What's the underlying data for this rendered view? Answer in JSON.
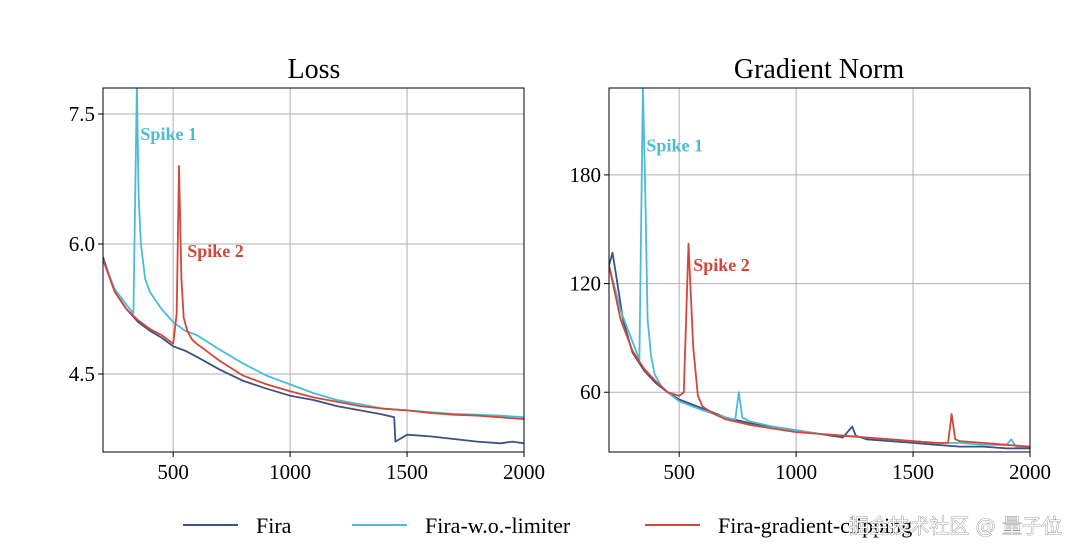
{
  "colors": {
    "fira": "#3b5283",
    "limiter": "#4bbcd6",
    "clip": "#d2473b",
    "grid": "#b0b0b0"
  },
  "legend": [
    {
      "label": "Fira",
      "key": "fira"
    },
    {
      "label": "Fira-w.o.-limiter",
      "key": "limiter"
    },
    {
      "label": "Fira-gradient-clipping",
      "key": "clip"
    }
  ],
  "watermark": "掘金技术社区 @ 量子位",
  "chart_data": [
    {
      "type": "line",
      "title": "Loss",
      "xlabel": "",
      "ylabel": "",
      "xlim": [
        200,
        2000
      ],
      "ylim": [
        3.6,
        7.8
      ],
      "xticks": [
        500,
        1000,
        1500,
        2000
      ],
      "yticks": [
        4.5,
        6.0,
        7.5
      ],
      "ytick_labels": [
        "4.5",
        "6.0",
        "7.5"
      ],
      "grid": true,
      "annotations": [
        {
          "text": "Spike 1",
          "x": 360,
          "y": 7.2,
          "series": "limiter"
        },
        {
          "text": "Spike 2",
          "x": 560,
          "y": 5.85,
          "series": "clip"
        }
      ],
      "series": [
        {
          "name": "Fira",
          "key": "fira",
          "x": [
            200,
            250,
            300,
            350,
            400,
            450,
            500,
            550,
            600,
            700,
            800,
            900,
            1000,
            1100,
            1200,
            1300,
            1400,
            1445,
            1450,
            1500,
            1600,
            1700,
            1800,
            1900,
            1950,
            2000
          ],
          "y": [
            5.85,
            5.45,
            5.25,
            5.1,
            5.0,
            4.92,
            4.82,
            4.77,
            4.7,
            4.55,
            4.42,
            4.33,
            4.25,
            4.2,
            4.13,
            4.08,
            4.03,
            4.0,
            3.72,
            3.8,
            3.78,
            3.75,
            3.72,
            3.7,
            3.72,
            3.7
          ]
        },
        {
          "name": "Fira-w.o.-limiter",
          "key": "limiter",
          "x": [
            200,
            250,
            300,
            330,
            345,
            352,
            362,
            380,
            400,
            450,
            500,
            550,
            600,
            700,
            800,
            900,
            1000,
            1100,
            1200,
            1300,
            1400,
            1500,
            1600,
            1700,
            1800,
            1900,
            2000
          ],
          "y": [
            5.82,
            5.48,
            5.3,
            5.2,
            7.85,
            6.55,
            6.0,
            5.6,
            5.45,
            5.25,
            5.1,
            5.0,
            4.95,
            4.78,
            4.62,
            4.48,
            4.38,
            4.28,
            4.2,
            4.15,
            4.1,
            4.08,
            4.06,
            4.04,
            4.03,
            4.02,
            4.0
          ]
        },
        {
          "name": "Fira-gradient-clipping",
          "key": "clip",
          "x": [
            200,
            250,
            300,
            350,
            400,
            450,
            500,
            515,
            525,
            535,
            545,
            560,
            580,
            600,
            650,
            700,
            800,
            900,
            1000,
            1100,
            1200,
            1300,
            1400,
            1500,
            1600,
            1700,
            1800,
            1900,
            2000
          ],
          "y": [
            5.82,
            5.45,
            5.25,
            5.12,
            5.02,
            4.95,
            4.85,
            5.2,
            6.9,
            5.6,
            5.15,
            5.0,
            4.9,
            4.85,
            4.75,
            4.65,
            4.48,
            4.38,
            4.3,
            4.23,
            4.18,
            4.13,
            4.1,
            4.08,
            4.05,
            4.03,
            4.02,
            4.0,
            3.98
          ]
        }
      ]
    },
    {
      "type": "line",
      "title": "Gradient Norm",
      "xlabel": "",
      "ylabel": "",
      "xlim": [
        200,
        2000
      ],
      "ylim": [
        27,
        228
      ],
      "xticks": [
        500,
        1000,
        1500,
        2000
      ],
      "yticks": [
        60,
        120,
        180
      ],
      "ytick_labels": [
        "60",
        "120",
        "180"
      ],
      "grid": true,
      "annotations": [
        {
          "text": "Spike 1",
          "x": 360,
          "y": 193,
          "series": "limiter"
        },
        {
          "text": "Spike 2",
          "x": 560,
          "y": 127,
          "series": "clip"
        }
      ],
      "series": [
        {
          "name": "Fira",
          "key": "fira",
          "x": [
            200,
            215,
            230,
            260,
            300,
            350,
            400,
            450,
            500,
            600,
            700,
            800,
            900,
            1000,
            1100,
            1200,
            1240,
            1255,
            1300,
            1400,
            1500,
            1600,
            1700,
            1800,
            1900,
            2000
          ],
          "y": [
            130,
            137,
            125,
            100,
            82,
            72,
            65,
            60,
            56,
            51,
            46,
            43,
            41,
            39,
            37,
            35,
            41,
            36,
            34,
            33,
            32,
            31,
            30,
            30,
            29,
            29
          ]
        },
        {
          "name": "Fira-w.o.-limiter",
          "key": "limiter",
          "x": [
            200,
            250,
            300,
            330,
            345,
            355,
            365,
            380,
            395,
            420,
            450,
            500,
            600,
            700,
            740,
            755,
            770,
            800,
            900,
            1000,
            1100,
            1200,
            1300,
            1400,
            1500,
            1600,
            1700,
            1800,
            1900,
            1920,
            1940,
            2000
          ],
          "y": [
            130,
            105,
            88,
            78,
            228,
            170,
            100,
            80,
            70,
            64,
            60,
            55,
            50,
            46,
            45,
            60,
            46,
            44,
            41,
            39,
            37,
            36,
            35,
            34,
            33,
            32,
            32,
            31,
            31,
            34,
            30,
            30
          ]
        },
        {
          "name": "Fira-gradient-clipping",
          "key": "clip",
          "x": [
            200,
            250,
            300,
            350,
            400,
            450,
            500,
            520,
            540,
            560,
            580,
            600,
            650,
            700,
            800,
            900,
            1000,
            1100,
            1200,
            1300,
            1400,
            1500,
            1600,
            1650,
            1665,
            1680,
            1700,
            1800,
            1900,
            2000
          ],
          "y": [
            130,
            100,
            83,
            73,
            66,
            60,
            58,
            60,
            142,
            85,
            58,
            52,
            48,
            45,
            42,
            40,
            38,
            37,
            36,
            35,
            34,
            33,
            32,
            32,
            48,
            34,
            33,
            32,
            31,
            30
          ]
        }
      ]
    }
  ]
}
